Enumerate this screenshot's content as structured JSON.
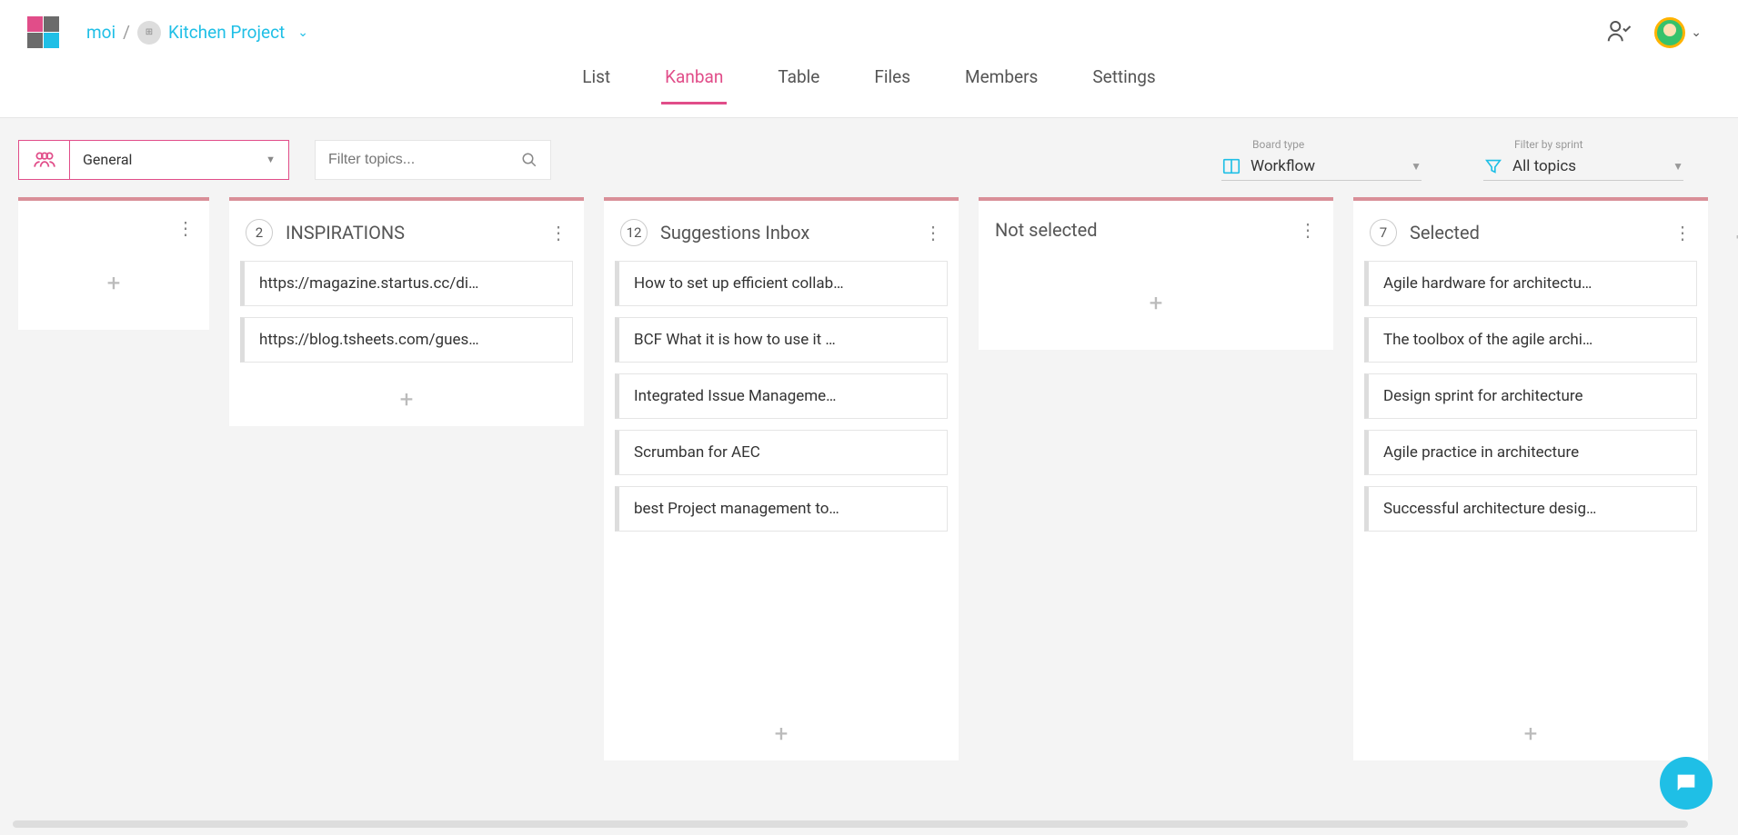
{
  "colors": {
    "accent_pink": "#e14d89",
    "accent_cyan": "#1fbfe6",
    "column_border": "#d98f98",
    "bg": "#f4f4f4"
  },
  "breadcrumb": {
    "user": "moi",
    "separator": "/",
    "project": "Kitchen Project"
  },
  "tabs": [
    {
      "id": "list",
      "label": "List",
      "active": false
    },
    {
      "id": "kanban",
      "label": "Kanban",
      "active": true
    },
    {
      "id": "table",
      "label": "Table",
      "active": false
    },
    {
      "id": "files",
      "label": "Files",
      "active": false
    },
    {
      "id": "members",
      "label": "Members",
      "active": false
    },
    {
      "id": "settings",
      "label": "Settings",
      "active": false
    }
  ],
  "team_filter": {
    "value": "General"
  },
  "search": {
    "placeholder": "Filter topics..."
  },
  "board_type": {
    "label": "Board type",
    "value": "Workflow"
  },
  "sprint_filter": {
    "label": "Filter by sprint",
    "value": "All topics"
  },
  "columns": [
    {
      "id": "col0",
      "count": null,
      "title": "",
      "border_color": "#d98f98",
      "short": true,
      "cards": []
    },
    {
      "id": "col1",
      "count": 2,
      "title": "INSPIRATIONS",
      "border_color": "#d98f98",
      "cards": [
        "https://magazine.startus.cc/di…",
        "https://blog.tsheets.com/gues…"
      ]
    },
    {
      "id": "col2",
      "count": 12,
      "title": "Suggestions Inbox",
      "border_color": "#d98f98",
      "tall": true,
      "cards": [
        "How to set up efficient collab…",
        "BCF What it is how to use it …",
        "Integrated Issue Manageme…",
        "Scrumban for AEC",
        "best Project management to…"
      ]
    },
    {
      "id": "col3",
      "count": null,
      "title": "Not selected",
      "border_color": "#d98f98",
      "cards": []
    },
    {
      "id": "col4",
      "count": 7,
      "title": "Selected",
      "border_color": "#d98f98",
      "tall": true,
      "cards": [
        "Agile hardware for architectu…",
        "The toolbox of the agile archi…",
        "Design sprint for architecture",
        "Agile practice in architecture",
        "Successful architecture desig…"
      ]
    }
  ]
}
